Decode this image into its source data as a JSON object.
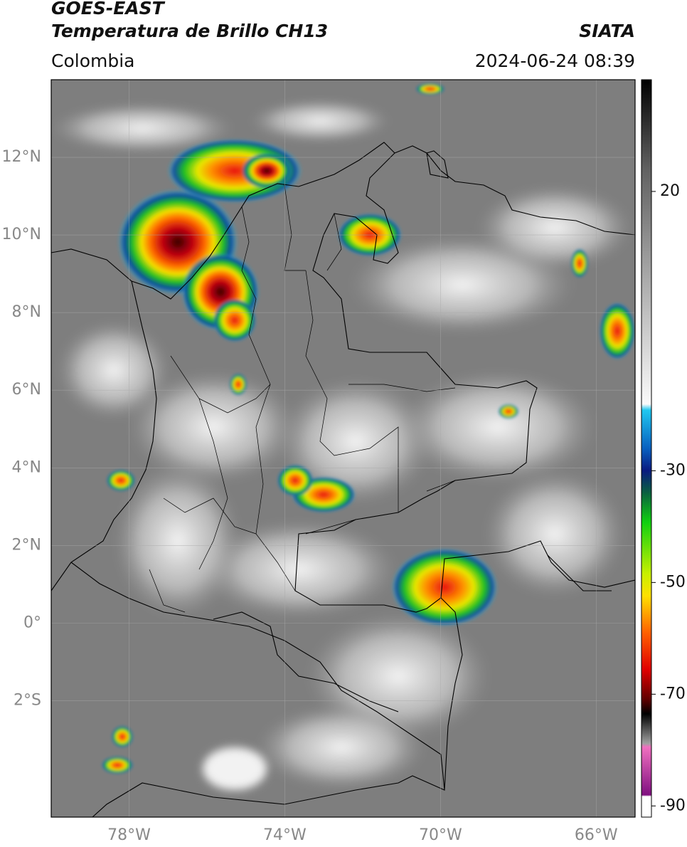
{
  "header": {
    "title": "GOES-EAST",
    "subtitle": "Temperatura de Brillo CH13",
    "source": "SIATA",
    "region": "Colombia",
    "datetime": "2024-06-24 08:39"
  },
  "map": {
    "lonlim": [
      -80,
      -65
    ],
    "latlim": [
      -5,
      14
    ],
    "lat_ticks": [
      {
        "value": 12,
        "label": "12°N"
      },
      {
        "value": 10,
        "label": "10°N"
      },
      {
        "value": 8,
        "label": "8°N"
      },
      {
        "value": 6,
        "label": "6°N"
      },
      {
        "value": 4,
        "label": "4°N"
      },
      {
        "value": 2,
        "label": "2°N"
      },
      {
        "value": 0,
        "label": "0°"
      },
      {
        "value": -2,
        "label": "2°S"
      }
    ],
    "lon_ticks": [
      {
        "value": -78,
        "label": "78°W"
      },
      {
        "value": -74,
        "label": "74°W"
      },
      {
        "value": -70,
        "label": "70°W"
      },
      {
        "value": -66,
        "label": "66°W"
      }
    ],
    "grid": true
  },
  "colorbar": {
    "range": [
      -92,
      40
    ],
    "ticks": [
      20,
      -30,
      -50,
      -70,
      -90
    ]
  }
}
